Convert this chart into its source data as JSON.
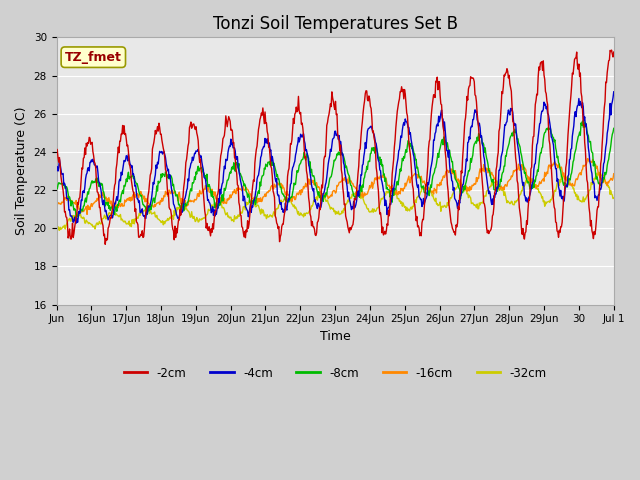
{
  "title": "Tonzi Soil Temperatures Set B",
  "xlabel": "Time",
  "ylabel": "Soil Temperature (C)",
  "ylim": [
    16,
    30
  ],
  "xlim_start": 15,
  "xlim_end": 31,
  "y_ticks": [
    16,
    18,
    20,
    22,
    24,
    26,
    28,
    30
  ],
  "x_tick_positions": [
    15,
    16,
    17,
    18,
    19,
    20,
    21,
    22,
    23,
    24,
    25,
    26,
    27,
    28,
    29,
    30,
    31
  ],
  "x_tick_labels": [
    "Jun",
    "16Jun",
    "17Jun",
    "18Jun",
    "19Jun",
    "20Jun",
    "21Jun",
    "22Jun",
    "23Jun",
    "24Jun",
    "25Jun",
    "26Jun",
    "27Jun",
    "28Jun",
    "29Jun",
    "30",
    "Jul 1"
  ],
  "colors": {
    "2cm": "#cc0000",
    "4cm": "#0000cc",
    "8cm": "#00bb00",
    "16cm": "#ff8800",
    "32cm": "#cccc00"
  },
  "legend_labels": [
    "-2cm",
    "-4cm",
    "-8cm",
    "-16cm",
    "-32cm"
  ],
  "annotation_text": "TZ_fmet",
  "annotation_box_facecolor": "#ffffcc",
  "annotation_box_edgecolor": "#999900",
  "annotation_text_color": "#990000",
  "fig_facecolor": "#d0d0d0",
  "ax_facecolor": "#e8e8e8",
  "grid_color": "#ffffff",
  "title_fontsize": 12,
  "label_fontsize": 9,
  "tick_fontsize": 7.5,
  "linewidth": 1.0
}
